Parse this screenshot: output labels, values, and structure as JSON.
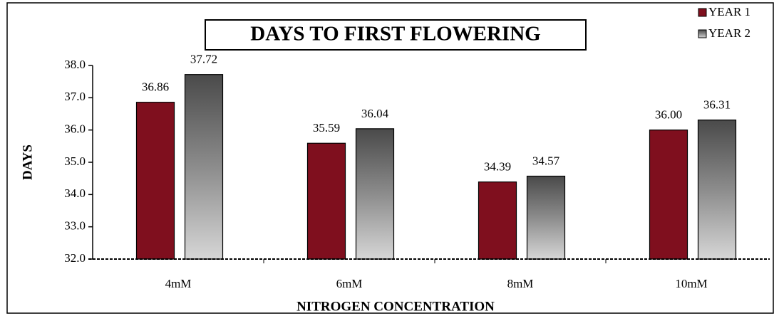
{
  "chart_data": {
    "type": "bar",
    "title": "DAYS TO FIRST FLOWERING",
    "x_label": "NITROGEN CONCENTRATION",
    "y_label": "DAYS",
    "categories": [
      "4mM",
      "6mM",
      "8mM",
      "10mM"
    ],
    "series": [
      {
        "name": "YEAR 1",
        "color": "#7f0f1e",
        "values": [
          36.86,
          35.59,
          34.39,
          36.0
        ],
        "value_labels": [
          "36.86",
          "35.59",
          "34.39",
          "36.00"
        ]
      },
      {
        "name": "YEAR 2",
        "color": "#8c8c8c",
        "values": [
          37.72,
          36.04,
          34.57,
          36.31
        ],
        "value_labels": [
          "37.72",
          "36.04",
          "34.57",
          "36.31"
        ]
      }
    ],
    "ylim": [
      32,
      38
    ],
    "yticks": [
      {
        "value": 32,
        "label": "32.0"
      },
      {
        "value": 33,
        "label": "33.0"
      },
      {
        "value": 34,
        "label": "34.0"
      },
      {
        "value": 35,
        "label": "35.0"
      },
      {
        "value": 36,
        "label": "36.0"
      },
      {
        "value": 37,
        "label": "37.0"
      },
      {
        "value": 38,
        "label": "38.0"
      }
    ],
    "legend": "top-right"
  }
}
